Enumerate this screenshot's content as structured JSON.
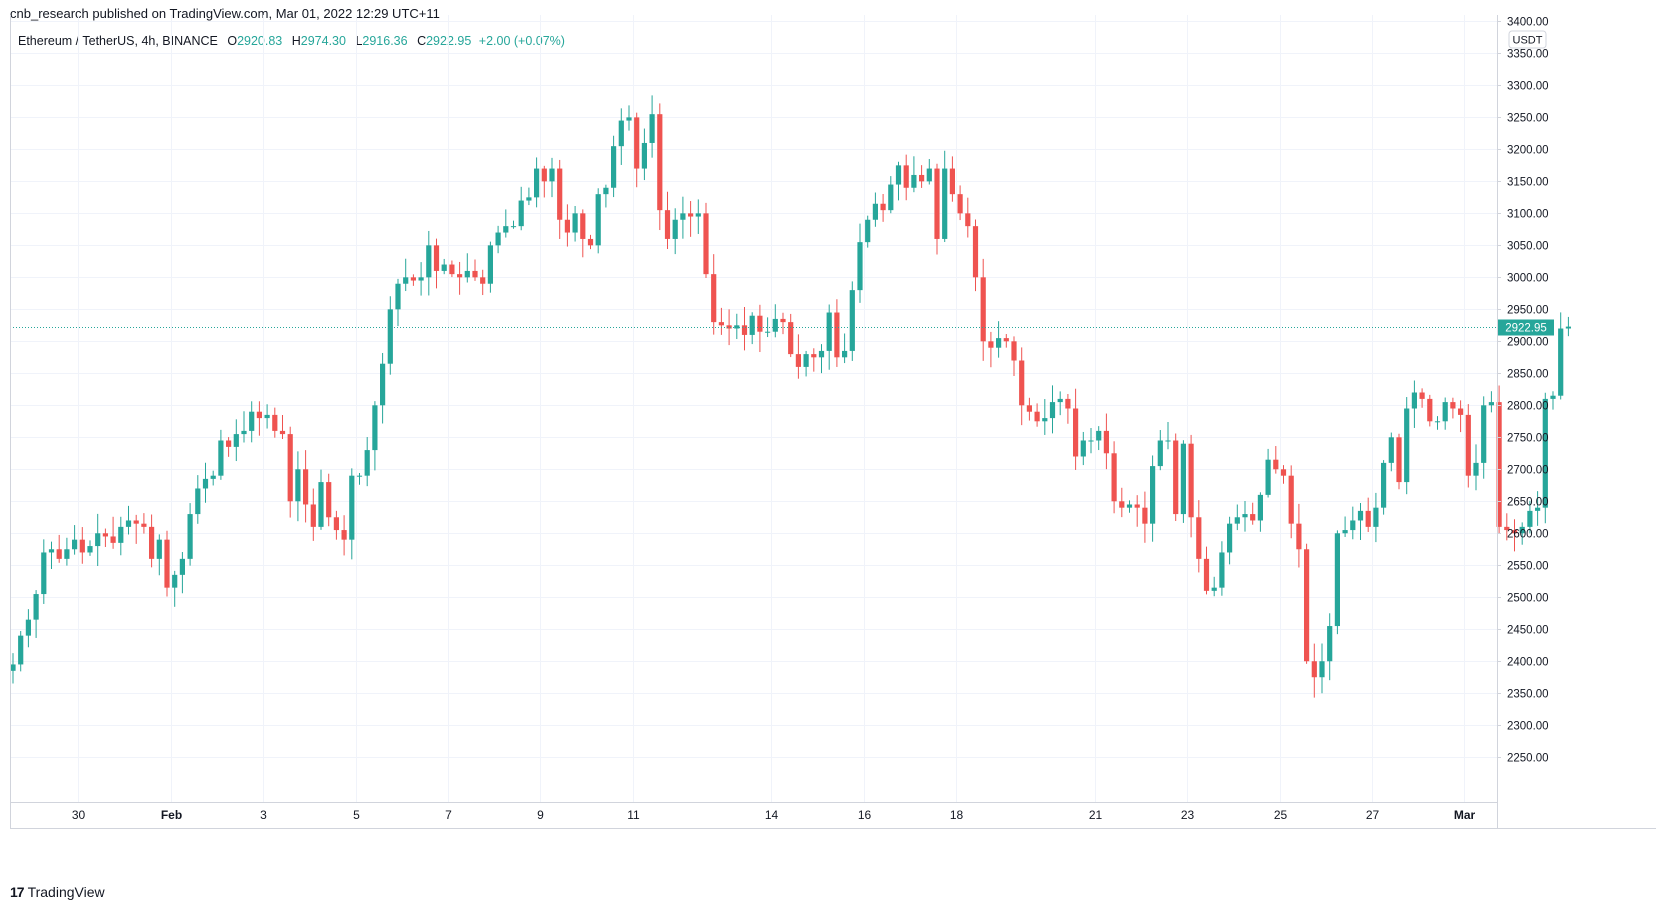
{
  "header": {
    "published": "cnb_research published on TradingView.com, Mar 01, 2022 12:29 UTC+11"
  },
  "legend": {
    "symbol": "Ethereum / TetherUS, 4h, BINANCE",
    "o_label": "O",
    "o_value": "2920.83",
    "h_label": "H",
    "h_value": "2974.30",
    "l_label": "L",
    "l_value": "2916.36",
    "c_label": "C",
    "c_value": "2922.95",
    "change": "+2.00 (+0.07%)"
  },
  "colors": {
    "up": "#26a69a",
    "down": "#ef5350",
    "grid": "#f0f3fa",
    "text": "#131722"
  },
  "price_axis": {
    "currency": "USDT",
    "last_price_label": "2922.95"
  },
  "brand": {
    "name": "TradingView",
    "logo": "17"
  },
  "chart_data": {
    "type": "candlestick",
    "title": "Ethereum / TetherUS, 4h, BINANCE",
    "ylabel": "USDT",
    "ylim": [
      2180,
      3410
    ],
    "last_price": 2922.95,
    "y_ticks": [
      "2250.00",
      "2300.00",
      "2350.00",
      "2400.00",
      "2450.00",
      "2500.00",
      "2550.00",
      "2600.00",
      "2650.00",
      "2700.00",
      "2750.00",
      "2800.00",
      "2850.00",
      "2900.00",
      "2950.00",
      "3000.00",
      "3050.00",
      "3100.00",
      "3150.00",
      "3200.00",
      "3250.00",
      "3300.00",
      "3350.00",
      "3400.00"
    ],
    "x_ticks": [
      {
        "label": "30",
        "index": 8.5
      },
      {
        "label": "Feb",
        "index": 20.5
      },
      {
        "label": "3",
        "index": 32.5
      },
      {
        "label": "5",
        "index": 44.5
      },
      {
        "label": "7",
        "index": 56.5
      },
      {
        "label": "9",
        "index": 68.5
      },
      {
        "label": "11",
        "index": 80.5
      },
      {
        "label": "14",
        "index": 98.5
      },
      {
        "label": "16",
        "index": 110.5
      },
      {
        "label": "18",
        "index": 122.5
      },
      {
        "label": "21",
        "index": 140.5
      },
      {
        "label": "23",
        "index": 152.5
      },
      {
        "label": "25",
        "index": 164.5
      },
      {
        "label": "27",
        "index": 176.5
      },
      {
        "label": "Mar",
        "index": 188.5
      }
    ],
    "closes": [
      2395,
      2440,
      2465,
      2505,
      2570,
      2575,
      2560,
      2575,
      2590,
      2570,
      2580,
      2600,
      2595,
      2585,
      2610,
      2620,
      2615,
      2610,
      2560,
      2590,
      2515,
      2535,
      2560,
      2630,
      2670,
      2685,
      2690,
      2745,
      2735,
      2755,
      2760,
      2790,
      2780,
      2785,
      2760,
      2755,
      2650,
      2700,
      2645,
      2610,
      2680,
      2625,
      2605,
      2590,
      2690,
      2690,
      2730,
      2800,
      2865,
      2950,
      2990,
      3000,
      2995,
      3000,
      3050,
      3010,
      3020,
      3005,
      3000,
      3010,
      3000,
      2990,
      3050,
      3070,
      3080,
      3080,
      3120,
      3125,
      3170,
      3150,
      3170,
      3090,
      3070,
      3100,
      3060,
      3050,
      3130,
      3140,
      3205,
      3245,
      3250,
      3170,
      3210,
      3255,
      3105,
      3060,
      3090,
      3100,
      3095,
      3100,
      3005,
      2930,
      2925,
      2920,
      2925,
      2910,
      2940,
      2915,
      2915,
      2935,
      2930,
      2880,
      2860,
      2880,
      2875,
      2885,
      2945,
      2875,
      2885,
      2980,
      3055,
      3090,
      3115,
      3105,
      3145,
      3175,
      3140,
      3160,
      3150,
      3170,
      3060,
      3170,
      3130,
      3100,
      3080,
      3000,
      2900,
      2890,
      2905,
      2900,
      2870,
      2800,
      2790,
      2775,
      2780,
      2805,
      2810,
      2795,
      2720,
      2745,
      2745,
      2760,
      2725,
      2650,
      2640,
      2645,
      2640,
      2615,
      2705,
      2745,
      2745,
      2630,
      2740,
      2625,
      2560,
      2510,
      2515,
      2570,
      2615,
      2625,
      2630,
      2620,
      2660,
      2715,
      2700,
      2690,
      2615,
      2575,
      2400,
      2375,
      2400,
      2455,
      2600,
      2605,
      2620,
      2635,
      2610,
      2640,
      2710,
      2750,
      2680,
      2795,
      2820,
      2810,
      2775,
      2775,
      2805,
      2795,
      2785,
      2690,
      2710,
      2800,
      2805,
      2610,
      2605,
      2600,
      2610,
      2635,
      2640,
      2810,
      2815,
      2920,
      2923
    ]
  }
}
